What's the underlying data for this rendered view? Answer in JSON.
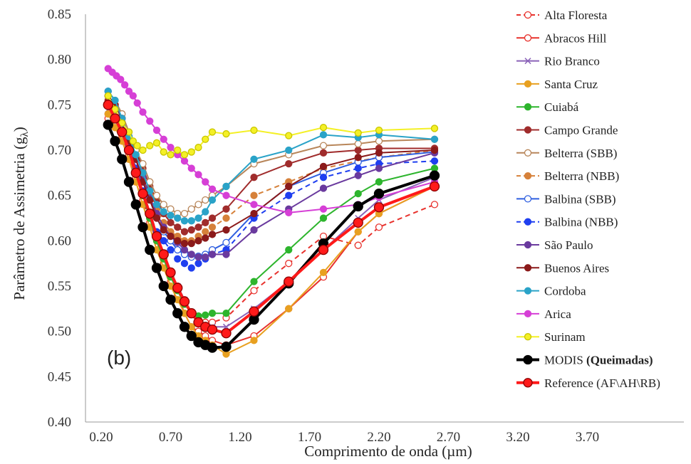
{
  "chart_data": {
    "type": "line",
    "panel_label": "(b)",
    "xlabel": "Comprimento de onda (µm)",
    "ylabel": "Parâmetro de Assimetria (g",
    "ylabel_sub": "λ",
    "ylabel_close": ")",
    "xlim": [
      0.2,
      4.2
    ],
    "ylim": [
      0.4,
      0.85
    ],
    "x_ticks": [
      "0.20",
      "0.70",
      "1.20",
      "1.70",
      "2.20",
      "2.70",
      "3.20",
      "3.70"
    ],
    "y_ticks": [
      "0.40",
      "0.45",
      "0.50",
      "0.55",
      "0.60",
      "0.65",
      "0.70",
      "0.75",
      "0.80",
      "0.85"
    ],
    "grid": false,
    "legend_position": "right",
    "series": [
      {
        "name": "Alta Floresta",
        "color": "#e8322d",
        "dash": true,
        "marker": "open",
        "x": [
          0.25,
          0.3,
          0.35,
          0.4,
          0.45,
          0.5,
          0.55,
          0.6,
          0.65,
          0.7,
          0.75,
          0.8,
          0.85,
          0.9,
          0.95,
          1.0,
          1.1,
          1.3,
          1.55,
          1.8,
          2.05,
          2.2,
          2.6
        ],
        "y": [
          0.735,
          0.725,
          0.71,
          0.69,
          0.665,
          0.645,
          0.62,
          0.6,
          0.58,
          0.565,
          0.55,
          0.535,
          0.52,
          0.515,
          0.51,
          0.51,
          0.515,
          0.545,
          0.575,
          0.605,
          0.595,
          0.615,
          0.64
        ]
      },
      {
        "name": "Abracos Hill",
        "color": "#e8322d",
        "dash": false,
        "marker": "open",
        "x": [
          0.25,
          0.3,
          0.35,
          0.4,
          0.45,
          0.5,
          0.55,
          0.6,
          0.65,
          0.7,
          0.75,
          0.8,
          0.85,
          0.9,
          0.95,
          1.0,
          1.1,
          1.3,
          1.55,
          1.8,
          2.05,
          2.2,
          2.6
        ],
        "y": [
          0.74,
          0.73,
          0.715,
          0.695,
          0.67,
          0.65,
          0.625,
          0.6,
          0.575,
          0.555,
          0.54,
          0.52,
          0.505,
          0.5,
          0.495,
          0.49,
          0.485,
          0.495,
          0.525,
          0.56,
          0.61,
          0.63,
          0.66
        ]
      },
      {
        "name": "Rio Branco",
        "color": "#8a62b8",
        "dash": false,
        "marker": "x",
        "x": [
          0.25,
          0.3,
          0.35,
          0.4,
          0.45,
          0.5,
          0.55,
          0.6,
          0.65,
          0.7,
          0.75,
          0.8,
          0.85,
          0.9,
          0.95,
          1.0,
          1.1,
          1.3,
          1.55,
          1.8,
          2.05,
          2.2,
          2.6
        ],
        "y": [
          0.745,
          0.735,
          0.72,
          0.7,
          0.68,
          0.655,
          0.63,
          0.605,
          0.585,
          0.565,
          0.55,
          0.535,
          0.52,
          0.51,
          0.505,
          0.505,
          0.505,
          0.525,
          0.555,
          0.59,
          0.625,
          0.645,
          0.67
        ]
      },
      {
        "name": "Santa Cruz",
        "color": "#e8a020",
        "dash": false,
        "marker": "filled",
        "x": [
          0.25,
          0.3,
          0.35,
          0.4,
          0.45,
          0.5,
          0.55,
          0.6,
          0.65,
          0.7,
          0.75,
          0.8,
          0.85,
          0.9,
          0.95,
          1.0,
          1.1,
          1.3,
          1.55,
          1.8,
          2.05,
          2.2,
          2.6
        ],
        "y": [
          0.74,
          0.725,
          0.71,
          0.69,
          0.665,
          0.64,
          0.615,
          0.59,
          0.57,
          0.55,
          0.535,
          0.52,
          0.505,
          0.495,
          0.49,
          0.485,
          0.475,
          0.49,
          0.525,
          0.565,
          0.61,
          0.63,
          0.66
        ]
      },
      {
        "name": "Cuiabá",
        "color": "#2db52d",
        "dash": false,
        "marker": "filled",
        "x": [
          0.25,
          0.3,
          0.35,
          0.4,
          0.45,
          0.5,
          0.55,
          0.6,
          0.65,
          0.7,
          0.75,
          0.8,
          0.85,
          0.9,
          0.95,
          1.0,
          1.1,
          1.3,
          1.55,
          1.8,
          2.05,
          2.2,
          2.6
        ],
        "y": [
          0.75,
          0.735,
          0.72,
          0.7,
          0.675,
          0.65,
          0.625,
          0.6,
          0.58,
          0.56,
          0.545,
          0.53,
          0.52,
          0.517,
          0.518,
          0.52,
          0.52,
          0.555,
          0.59,
          0.625,
          0.652,
          0.665,
          0.68
        ]
      },
      {
        "name": "Campo Grande",
        "color": "#a02c2c",
        "dash": false,
        "marker": "filled",
        "x": [
          0.25,
          0.3,
          0.35,
          0.4,
          0.45,
          0.5,
          0.55,
          0.6,
          0.65,
          0.7,
          0.75,
          0.8,
          0.85,
          0.9,
          0.95,
          1.0,
          1.1,
          1.3,
          1.55,
          1.8,
          2.05,
          2.2,
          2.6
        ],
        "y": [
          0.755,
          0.745,
          0.73,
          0.715,
          0.7,
          0.68,
          0.66,
          0.645,
          0.63,
          0.62,
          0.615,
          0.61,
          0.612,
          0.615,
          0.62,
          0.625,
          0.635,
          0.67,
          0.685,
          0.697,
          0.7,
          0.702,
          0.702
        ]
      },
      {
        "name": "Belterra (SBB)",
        "color": "#b8865a",
        "dash": false,
        "marker": "open",
        "x": [
          0.25,
          0.3,
          0.35,
          0.4,
          0.45,
          0.5,
          0.55,
          0.6,
          0.65,
          0.7,
          0.75,
          0.8,
          0.85,
          0.9,
          0.95,
          1.0,
          1.1,
          1.3,
          1.55,
          1.8,
          2.05,
          2.2,
          2.6
        ],
        "y": [
          0.765,
          0.755,
          0.74,
          0.72,
          0.7,
          0.685,
          0.665,
          0.65,
          0.64,
          0.635,
          0.63,
          0.63,
          0.635,
          0.64,
          0.645,
          0.65,
          0.66,
          0.685,
          0.695,
          0.705,
          0.707,
          0.71,
          0.712
        ]
      },
      {
        "name": "Belterra (NBB)",
        "color": "#d6813a",
        "dash": true,
        "marker": "filled",
        "x": [
          0.25,
          0.3,
          0.35,
          0.4,
          0.45,
          0.5,
          0.55,
          0.6,
          0.65,
          0.7,
          0.75,
          0.8,
          0.85,
          0.9,
          0.95,
          1.0,
          1.1,
          1.3,
          1.55,
          1.8,
          2.05,
          2.2,
          2.6
        ],
        "y": [
          0.76,
          0.75,
          0.735,
          0.715,
          0.69,
          0.67,
          0.65,
          0.635,
          0.62,
          0.61,
          0.605,
          0.6,
          0.6,
          0.605,
          0.61,
          0.615,
          0.625,
          0.65,
          0.665,
          0.68,
          0.688,
          0.692,
          0.7
        ]
      },
      {
        "name": "Balbina (SBB)",
        "color": "#2f5fe0",
        "dash": false,
        "marker": "open",
        "x": [
          0.25,
          0.3,
          0.35,
          0.4,
          0.45,
          0.5,
          0.55,
          0.6,
          0.65,
          0.7,
          0.75,
          0.8,
          0.85,
          0.9,
          0.95,
          1.0,
          1.1,
          1.3,
          1.55,
          1.8,
          2.05,
          2.2,
          2.6
        ],
        "y": [
          0.76,
          0.75,
          0.735,
          0.715,
          0.69,
          0.665,
          0.645,
          0.625,
          0.61,
          0.6,
          0.59,
          0.585,
          0.582,
          0.583,
          0.585,
          0.59,
          0.598,
          0.63,
          0.66,
          0.675,
          0.687,
          0.692,
          0.698
        ]
      },
      {
        "name": "Balbina (NBB)",
        "color": "#1f3ff0",
        "dash": true,
        "marker": "filled",
        "x": [
          0.25,
          0.3,
          0.35,
          0.4,
          0.45,
          0.5,
          0.55,
          0.6,
          0.65,
          0.7,
          0.75,
          0.8,
          0.85,
          0.9,
          0.95,
          1.0,
          1.1,
          1.3,
          1.55,
          1.8,
          2.05,
          2.2,
          2.6
        ],
        "y": [
          0.765,
          0.75,
          0.73,
          0.705,
          0.68,
          0.655,
          0.63,
          0.61,
          0.6,
          0.59,
          0.58,
          0.575,
          0.57,
          0.575,
          0.58,
          0.585,
          0.59,
          0.625,
          0.65,
          0.67,
          0.68,
          0.685,
          0.688
        ]
      },
      {
        "name": "São Paulo",
        "color": "#6a3a9e",
        "dash": false,
        "marker": "filled",
        "x": [
          0.25,
          0.3,
          0.35,
          0.4,
          0.45,
          0.5,
          0.55,
          0.6,
          0.65,
          0.7,
          0.75,
          0.8,
          0.85,
          0.9,
          0.95,
          1.0,
          1.1,
          1.3,
          1.55,
          1.8,
          2.05,
          2.2,
          2.6
        ],
        "y": [
          0.76,
          0.75,
          0.735,
          0.715,
          0.69,
          0.67,
          0.648,
          0.63,
          0.615,
          0.605,
          0.598,
          0.59,
          0.585,
          0.582,
          0.582,
          0.585,
          0.585,
          0.612,
          0.635,
          0.658,
          0.672,
          0.68,
          0.697
        ]
      },
      {
        "name": "Buenos Aires",
        "color": "#8b1a1a",
        "dash": false,
        "marker": "filled",
        "x": [
          0.25,
          0.3,
          0.35,
          0.4,
          0.45,
          0.5,
          0.55,
          0.6,
          0.65,
          0.7,
          0.75,
          0.8,
          0.85,
          0.9,
          0.95,
          1.0,
          1.1,
          1.3,
          1.55,
          1.8,
          2.05,
          2.2,
          2.6
        ],
        "y": [
          0.76,
          0.75,
          0.735,
          0.71,
          0.69,
          0.665,
          0.645,
          0.625,
          0.612,
          0.605,
          0.6,
          0.597,
          0.597,
          0.6,
          0.603,
          0.607,
          0.612,
          0.63,
          0.66,
          0.682,
          0.692,
          0.697,
          0.7
        ]
      },
      {
        "name": "Cordoba",
        "color": "#2aa3c8",
        "dash": false,
        "marker": "filled",
        "x": [
          0.25,
          0.3,
          0.35,
          0.4,
          0.45,
          0.5,
          0.55,
          0.6,
          0.65,
          0.7,
          0.75,
          0.8,
          0.85,
          0.9,
          0.95,
          1.0,
          1.1,
          1.3,
          1.55,
          1.8,
          2.05,
          2.2,
          2.6
        ],
        "y": [
          0.765,
          0.755,
          0.735,
          0.715,
          0.695,
          0.675,
          0.655,
          0.64,
          0.632,
          0.628,
          0.625,
          0.622,
          0.622,
          0.625,
          0.632,
          0.645,
          0.66,
          0.69,
          0.7,
          0.717,
          0.714,
          0.717,
          0.712
        ]
      },
      {
        "name": "Arica",
        "color": "#d63fd6",
        "dash": false,
        "marker": "filled",
        "x": [
          0.25,
          0.28,
          0.31,
          0.34,
          0.37,
          0.4,
          0.43,
          0.46,
          0.5,
          0.55,
          0.6,
          0.65,
          0.7,
          0.75,
          0.8,
          0.85,
          0.9,
          0.95,
          1.0,
          1.1,
          1.3,
          1.55,
          1.8,
          2.05,
          2.2,
          2.6
        ],
        "y": [
          0.79,
          0.786,
          0.782,
          0.778,
          0.772,
          0.765,
          0.76,
          0.752,
          0.742,
          0.732,
          0.722,
          0.712,
          0.703,
          0.695,
          0.688,
          0.68,
          0.673,
          0.665,
          0.657,
          0.65,
          0.64,
          0.631,
          0.635,
          0.64,
          0.648,
          0.665
        ]
      },
      {
        "name": "Surinam",
        "color": "#f4f026",
        "dash": false,
        "marker": "filled",
        "x": [
          0.25,
          0.3,
          0.35,
          0.4,
          0.43,
          0.46,
          0.5,
          0.55,
          0.6,
          0.65,
          0.7,
          0.75,
          0.8,
          0.85,
          0.9,
          0.95,
          1.0,
          1.1,
          1.3,
          1.55,
          1.8,
          2.05,
          2.2,
          2.6
        ],
        "y": [
          0.76,
          0.745,
          0.73,
          0.72,
          0.71,
          0.705,
          0.7,
          0.705,
          0.708,
          0.698,
          0.695,
          0.7,
          0.695,
          0.698,
          0.703,
          0.712,
          0.72,
          0.718,
          0.722,
          0.716,
          0.725,
          0.719,
          0.722,
          0.724
        ]
      },
      {
        "name": "MODIS (Queimadas)",
        "name_plain": "MODIS ",
        "name_bold": "(Queimadas)",
        "color": "#000000",
        "dash": false,
        "marker": "filled",
        "thick": true,
        "x": [
          0.25,
          0.3,
          0.35,
          0.4,
          0.45,
          0.5,
          0.55,
          0.6,
          0.65,
          0.7,
          0.75,
          0.8,
          0.85,
          0.9,
          0.95,
          1.0,
          1.1,
          1.3,
          1.55,
          1.8,
          2.05,
          2.2,
          2.6
        ],
        "y": [
          0.728,
          0.71,
          0.69,
          0.665,
          0.64,
          0.615,
          0.59,
          0.57,
          0.55,
          0.535,
          0.52,
          0.505,
          0.495,
          0.488,
          0.485,
          0.482,
          0.483,
          0.513,
          0.553,
          0.597,
          0.638,
          0.652,
          0.672
        ]
      },
      {
        "name": "Reference (AF\\AH\\RB)",
        "color": "#ff1a1a",
        "dash": false,
        "marker": "filled",
        "thick": true,
        "darkmarker": true,
        "x": [
          0.25,
          0.3,
          0.35,
          0.4,
          0.45,
          0.5,
          0.55,
          0.6,
          0.65,
          0.7,
          0.75,
          0.8,
          0.85,
          0.9,
          0.95,
          1.0,
          1.1,
          1.3,
          1.55,
          1.8,
          2.05,
          2.2,
          2.6
        ],
        "y": [
          0.75,
          0.735,
          0.72,
          0.7,
          0.675,
          0.652,
          0.63,
          0.605,
          0.585,
          0.565,
          0.548,
          0.533,
          0.52,
          0.51,
          0.505,
          0.502,
          0.498,
          0.522,
          0.555,
          0.59,
          0.62,
          0.637,
          0.66
        ]
      }
    ]
  }
}
